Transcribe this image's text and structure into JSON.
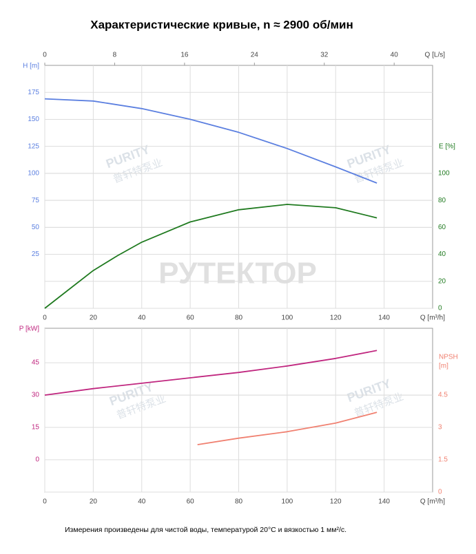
{
  "title": "Характеристические кривые, n ≈ 2900 об/мин",
  "note": "Измерения произведены для чистой воды, температурой 20°C и вязкостью 1 мм²/с.",
  "watermark": "РУТЕКТОР",
  "logo_text": "PURITY",
  "logo_subtext": "普轩特泵业",
  "chart_data": [
    {
      "type": "line",
      "xlabel": "Q [m³/h]",
      "xlim": [
        0,
        160
      ],
      "xticks": [
        0,
        20,
        40,
        60,
        80,
        100,
        120,
        140
      ],
      "x2label": "Q [L/s]",
      "x2lim": [
        0,
        44.4
      ],
      "x2ticks": [
        0,
        8,
        16,
        24,
        32,
        40
      ],
      "ylabel": "H [m]",
      "ylim": [
        -25,
        200
      ],
      "yticks": [
        25,
        50,
        75,
        100,
        125,
        150,
        175
      ],
      "y2label": [
        "E [%]"
      ],
      "y2lim": [
        0,
        180
      ],
      "y2ticks": [
        0,
        20,
        40,
        60,
        80,
        100
      ],
      "grid": true,
      "series": [
        {
          "color": "#5b7fe0",
          "x": [
            0,
            20,
            40,
            60,
            80,
            100,
            120,
            137
          ],
          "values": [
            169,
            167,
            160,
            150,
            138,
            123,
            106,
            91
          ]
        },
        {
          "color": "#1f7a1f",
          "axis": "y2",
          "x": [
            0,
            10,
            20,
            30,
            40,
            60,
            80,
            100,
            120,
            137
          ],
          "values": [
            0,
            14,
            28,
            39,
            49,
            64,
            73,
            77,
            74.5,
            67
          ]
        }
      ]
    },
    {
      "type": "line",
      "xlabel": "Q [m³/h]",
      "xlim": [
        0,
        160
      ],
      "xticks": [
        0,
        20,
        40,
        60,
        80,
        100,
        120,
        140
      ],
      "ylabel": "P [kW]",
      "ylim": [
        -15,
        61
      ],
      "yticks": [
        0,
        15,
        30,
        45
      ],
      "y2label": [
        "NPSH",
        "[m]"
      ],
      "y2lim": [
        0,
        7.6
      ],
      "y2ticks": [
        0,
        1.5,
        3,
        4.5
      ],
      "grid": true,
      "series": [
        {
          "color": "#c0267f",
          "x": [
            0,
            20,
            40,
            60,
            80,
            100,
            120,
            137
          ],
          "values": [
            30,
            33,
            35.5,
            38,
            40.5,
            43.5,
            47,
            50.7
          ]
        },
        {
          "color": "#f08070",
          "axis": "y2",
          "x": [
            63,
            80,
            100,
            120,
            137
          ],
          "values": [
            2.2,
            2.5,
            2.8,
            3.2,
            3.7
          ]
        }
      ]
    }
  ]
}
